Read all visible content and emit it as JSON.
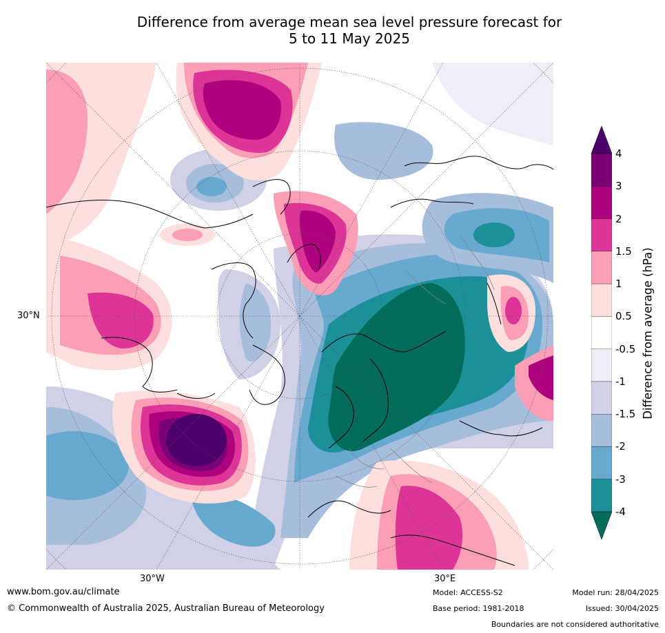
{
  "title": {
    "line1": "Difference from average mean sea level pressure forecast for",
    "line2": "5 to 11 May 2025"
  },
  "map": {
    "projection": "polar stereographic (north)",
    "axis_labels": {
      "left_lat": "30°N",
      "bottom_left_lon": "30°W",
      "bottom_right_lon": "30°E"
    }
  },
  "colorbar": {
    "label": "Difference from average (hPa)",
    "ticks": [
      "4",
      "3",
      "2",
      "1.5",
      "1",
      "0.5",
      "-0.5",
      "-1",
      "-1.5",
      "-2",
      "-3",
      "-4"
    ],
    "bands": [
      {
        "range": ">4",
        "color": "#4d006b"
      },
      {
        "range": "3 to 4",
        "color": "#7b0276"
      },
      {
        "range": "2 to 3",
        "color": "#ae017e"
      },
      {
        "range": "1.5 to 2",
        "color": "#dd3497"
      },
      {
        "range": "1 to 1.5",
        "color": "#fa9fb5"
      },
      {
        "range": "0.5 to 1",
        "color": "#fde0dd"
      },
      {
        "range": "-0.5 to 0.5",
        "color": "#ffffff"
      },
      {
        "range": "-1 to -0.5",
        "color": "#efedf5"
      },
      {
        "range": "-1.5 to -1",
        "color": "#d0d1e6"
      },
      {
        "range": "-2 to -1.5",
        "color": "#a6bddb"
      },
      {
        "range": "-3 to -2",
        "color": "#67a9cf"
      },
      {
        "range": "-4 to -3",
        "color": "#1c9099"
      },
      {
        "range": "<-4",
        "color": "#016c59"
      }
    ]
  },
  "footer": {
    "website": "www.bom.gov.au/climate",
    "copyright": "© Commonwealth of Australia 2025, Australian Bureau of Meteorology",
    "model": "Model: ACCESS-S2",
    "base_period": "Base period: 1981-2018",
    "model_run": "Model run: 28/04/2025",
    "issued": "Issued: 30/04/2025",
    "disclaimer": "Boundaries are not considered authoritative"
  }
}
